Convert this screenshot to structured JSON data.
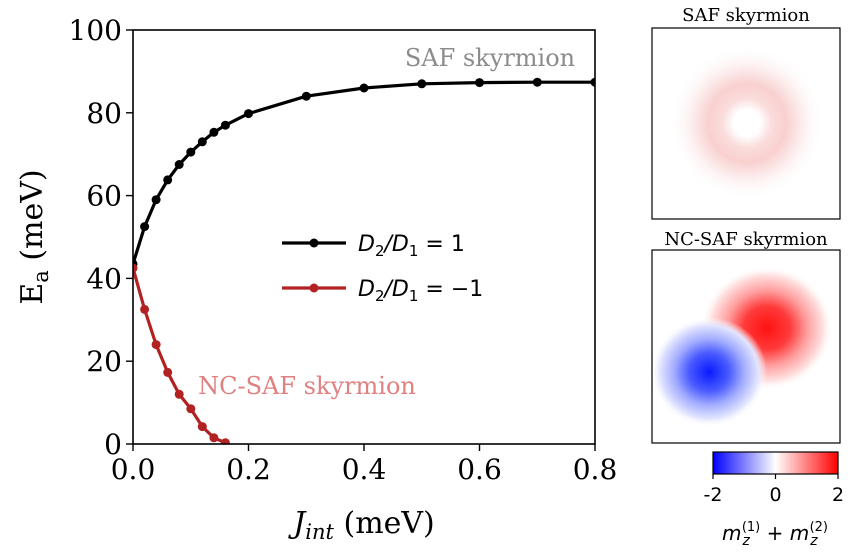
{
  "chart_data": [
    {
      "type": "line",
      "xlabel_main": "J",
      "xlabel_sub": "int",
      "xlabel_unit": " (meV)",
      "ylabel_main": "E",
      "ylabel_sub": "a",
      "ylabel_unit": " (meV)",
      "xlim": [
        0.0,
        0.8
      ],
      "ylim": [
        0,
        100
      ],
      "xticks": [
        "0.0",
        "0.2",
        "0.4",
        "0.6",
        "0.8"
      ],
      "yticks": [
        "0",
        "20",
        "40",
        "60",
        "80",
        "100"
      ],
      "legend": {
        "placement": "center",
        "entries": [
          {
            "lhs": "D",
            "lhs_sub": "2",
            "mid": "/D",
            "mid_sub": "1",
            "rhs": " = 1"
          },
          {
            "lhs": "D",
            "lhs_sub": "2",
            "mid": "/D",
            "mid_sub": "1",
            "rhs": " = −1"
          }
        ]
      },
      "annotations": [
        {
          "text": "SAF skyrmion",
          "color": "#8c8c8c",
          "at": [
            0.39,
            93
          ]
        },
        {
          "text": "NC-SAF skyrmion",
          "color": "#e08080",
          "at": [
            0.11,
            12
          ]
        }
      ],
      "series": [
        {
          "name": "D2/D1 = 1",
          "color": "#000000",
          "x": [
            0.0,
            0.02,
            0.04,
            0.06,
            0.08,
            0.1,
            0.12,
            0.14,
            0.16,
            0.2,
            0.3,
            0.4,
            0.5,
            0.6,
            0.7,
            0.8
          ],
          "y": [
            43.5,
            52.5,
            59.0,
            63.8,
            67.5,
            70.5,
            73.0,
            75.3,
            77.0,
            79.8,
            84.0,
            86.0,
            87.0,
            87.3,
            87.4,
            87.4
          ]
        },
        {
          "name": "D2/D1 = -1",
          "color": "#b22222",
          "x": [
            0.0,
            0.02,
            0.04,
            0.06,
            0.08,
            0.1,
            0.12,
            0.14,
            0.16
          ],
          "y": [
            42.5,
            32.5,
            24.0,
            17.3,
            12.0,
            8.5,
            4.2,
            1.5,
            0.3
          ]
        }
      ]
    },
    {
      "type": "heatmap",
      "title": "SAF skyrmion",
      "pattern": "ring"
    },
    {
      "type": "heatmap",
      "title": "NC-SAF skyrmion",
      "pattern": "dipole"
    },
    {
      "type": "colorbar",
      "range": [
        -2,
        2
      ],
      "colors": [
        "#0000ff",
        "#ffffff",
        "#ff0000"
      ],
      "ticks": [
        "-2",
        "0",
        "2"
      ],
      "label_main": "m",
      "label_sub": "z",
      "label_sup1": "(1)",
      "label_plus": " + ",
      "label_sup2": "(2)"
    }
  ]
}
